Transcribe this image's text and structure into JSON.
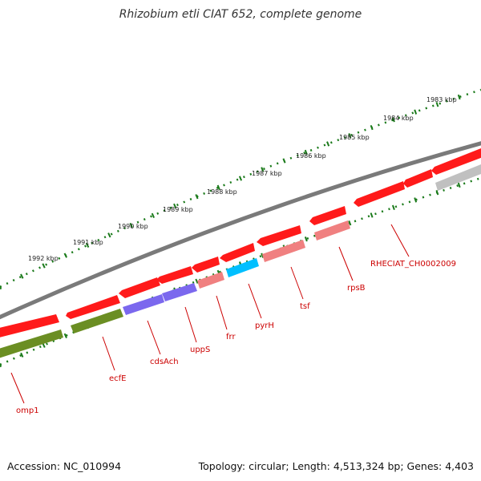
{
  "title": "Rhizobium etli CIAT 652, complete genome",
  "footer": {
    "accession": "Accession: NC_010994",
    "stats": "Topology: circular; Length: 4,513,324 bp; Genes: 4,403"
  },
  "ticks": [
    {
      "label": "1983 kbp"
    },
    {
      "label": "1984 kbp"
    },
    {
      "label": "1985 kbp"
    },
    {
      "label": "1986 kbp"
    },
    {
      "label": "1987 kbp"
    },
    {
      "label": "1988 kbp"
    },
    {
      "label": "1989 kbp"
    },
    {
      "label": "1990 kbp"
    },
    {
      "label": "1991 kbp"
    },
    {
      "label": "1992 kbp"
    }
  ],
  "genes": [
    {
      "label": "omp1",
      "track": "minus",
      "color": "#6b8e23"
    },
    {
      "label": "ecfE",
      "track": "minus",
      "color": "#6b8e23"
    },
    {
      "label": "cdsAch",
      "track": "minus",
      "color": "#7b68ee"
    },
    {
      "label": "uppS",
      "track": "minus",
      "color": "#7b68ee"
    },
    {
      "label": "frr",
      "track": "minus",
      "color": "#f08080"
    },
    {
      "label": "pyrH",
      "track": "minus",
      "color": "#00bfff"
    },
    {
      "label": "tsf",
      "track": "minus",
      "color": "#f08080"
    },
    {
      "label": "rpsB",
      "track": "minus",
      "color": "#f08080"
    },
    {
      "label": "RHECIAT_CH0002009",
      "track": "plus",
      "color": "#ff0000"
    }
  ],
  "colors": {
    "backbone": "#808080",
    "plus_strand": "#ff0000",
    "tick_marks": "#1a7a1a",
    "label_lines": "#cc0000",
    "other_gene": "#c0c0c0"
  }
}
